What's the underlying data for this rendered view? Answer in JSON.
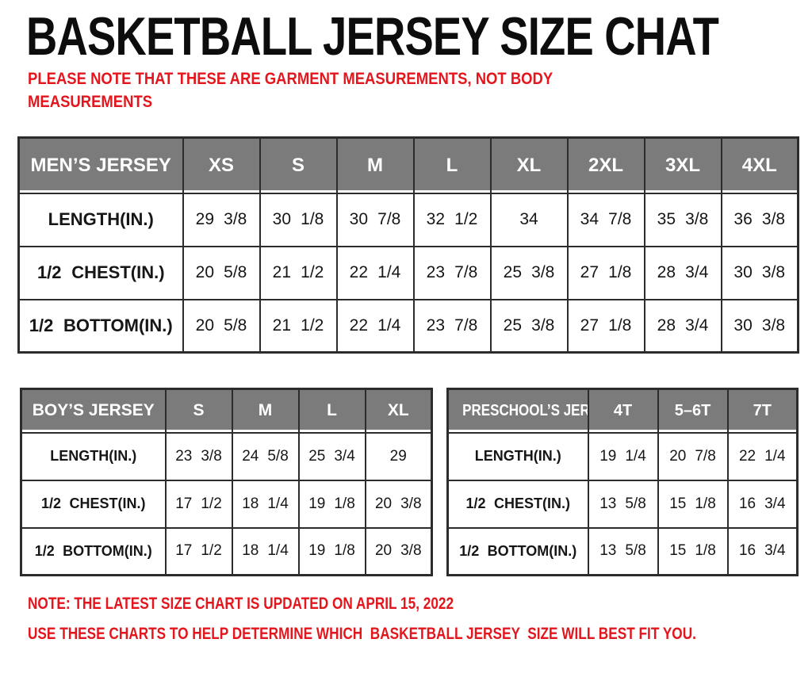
{
  "page": {
    "title": "BASKETBALL JERSEY SIZE CHAT",
    "subtitle_line1": "PLEASE NOTE THAT THESE ARE GARMENT MEASUREMENTS, NOT BODY",
    "subtitle_line2": "MEASUREMENTS",
    "footer_note_1": "NOTE: THE LATEST SIZE CHART IS UPDATED ON APRIL 15, 2022",
    "footer_note_2": "USE THESE CHARTS TO HELP DETERMINE WHICH  BASKETBALL JERSEY  SIZE WILL BEST FIT YOU."
  },
  "colors": {
    "accent_red": "#e3161d",
    "header_gray": "#7b7b7b",
    "border_dark": "#2c2c2c",
    "header_text": "#ffffff",
    "body_text": "#161616",
    "background": "#ffffff"
  },
  "tables": [
    {
      "name": "mens-jersey",
      "header": [
        "MEN’S JERSEY",
        "XS",
        "S",
        "M",
        "L",
        "XL",
        "2XL",
        "3XL",
        "4XL"
      ],
      "rows": [
        {
          "label": "LENGTH(IN.)",
          "values": [
            "29 3/8",
            "30 1/8",
            "30 7/8",
            "32 1/2",
            "34",
            "34 7/8",
            "35 3/8",
            "36 3/8"
          ]
        },
        {
          "label": "1/2 CHEST(IN.)",
          "values": [
            "20 5/8",
            "21 1/2",
            "22 1/4",
            "23 7/8",
            "25 3/8",
            "27 1/8",
            "28 3/4",
            "30 3/8"
          ]
        },
        {
          "label": "1/2 BOTTOM(IN.)",
          "values": [
            "20 5/8",
            "21 1/2",
            "22 1/4",
            "23 7/8",
            "25 3/8",
            "27 1/8",
            "28 3/4",
            "30 3/8"
          ]
        }
      ]
    },
    {
      "name": "boys-jersey",
      "header": [
        "BOY’S JERSEY",
        "S",
        "M",
        "L",
        "XL"
      ],
      "rows": [
        {
          "label": "LENGTH(IN.)",
          "values": [
            "23 3/8",
            "24 5/8",
            "25 3/4",
            "29"
          ]
        },
        {
          "label": "1/2 CHEST(IN.)",
          "values": [
            "17 1/2",
            "18 1/4",
            "19 1/8",
            "20 3/8"
          ]
        },
        {
          "label": "1/2 BOTTOM(IN.)",
          "values": [
            "17 1/2",
            "18 1/4",
            "19 1/8",
            "20 3/8"
          ]
        }
      ]
    },
    {
      "name": "preschools-jersey",
      "header": [
        "PRESCHOOL’S JERSEY",
        "4T",
        "5–6T",
        "7T"
      ],
      "rows": [
        {
          "label": "LENGTH(IN.)",
          "values": [
            "19 1/4",
            "20 7/8",
            "22 1/4"
          ]
        },
        {
          "label": "1/2 CHEST(IN.)",
          "values": [
            "13 5/8",
            "15 1/8",
            "16 3/4"
          ]
        },
        {
          "label": "1/2 BOTTOM(IN.)",
          "values": [
            "13 5/8",
            "15 1/8",
            "16 3/4"
          ]
        }
      ]
    }
  ]
}
